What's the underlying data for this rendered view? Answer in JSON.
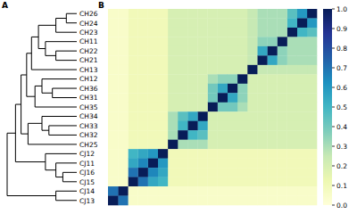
{
  "chart_data": {
    "type": "heatmap",
    "panel_labels": [
      "A",
      "B"
    ],
    "rows": [
      "CH26",
      "CH24",
      "CH23",
      "CH11",
      "CH22",
      "CH21",
      "CH13",
      "CH12",
      "CH36",
      "CH31",
      "CH35",
      "CH34",
      "CH33",
      "CH32",
      "CH25",
      "CJ12",
      "CJ11",
      "CJ16",
      "CJ15",
      "CJ14",
      "CJ13"
    ],
    "cells": [
      [
        1,
        0.6,
        0.45,
        0.3,
        0.3,
        0.3,
        0.25,
        0.2,
        0.2,
        0.2,
        0.2,
        0.2,
        0.2,
        0.2,
        0.2,
        0.1,
        0.1,
        0.1,
        0.1,
        0.05,
        0.05
      ],
      [
        0.6,
        1,
        0.5,
        0.3,
        0.3,
        0.3,
        0.25,
        0.2,
        0.2,
        0.2,
        0.2,
        0.2,
        0.2,
        0.2,
        0.2,
        0.1,
        0.1,
        0.1,
        0.1,
        0.05,
        0.05
      ],
      [
        0.45,
        0.5,
        1,
        0.3,
        0.3,
        0.3,
        0.25,
        0.2,
        0.2,
        0.2,
        0.2,
        0.2,
        0.2,
        0.2,
        0.2,
        0.1,
        0.1,
        0.1,
        0.1,
        0.05,
        0.05
      ],
      [
        0.3,
        0.3,
        0.3,
        1,
        0.35,
        0.35,
        0.25,
        0.2,
        0.2,
        0.2,
        0.2,
        0.2,
        0.2,
        0.2,
        0.2,
        0.1,
        0.1,
        0.1,
        0.1,
        0.05,
        0.05
      ],
      [
        0.3,
        0.3,
        0.3,
        0.35,
        1,
        0.55,
        0.25,
        0.2,
        0.2,
        0.2,
        0.2,
        0.2,
        0.2,
        0.2,
        0.2,
        0.1,
        0.1,
        0.1,
        0.1,
        0.05,
        0.05
      ],
      [
        0.3,
        0.3,
        0.3,
        0.35,
        0.55,
        1,
        0.25,
        0.2,
        0.2,
        0.2,
        0.2,
        0.2,
        0.2,
        0.2,
        0.2,
        0.1,
        0.1,
        0.1,
        0.1,
        0.05,
        0.05
      ],
      [
        0.25,
        0.25,
        0.25,
        0.25,
        0.25,
        0.25,
        1,
        0.2,
        0.2,
        0.2,
        0.2,
        0.2,
        0.2,
        0.2,
        0.2,
        0.1,
        0.1,
        0.1,
        0.1,
        0.05,
        0.05
      ],
      [
        0.2,
        0.2,
        0.2,
        0.2,
        0.2,
        0.2,
        0.2,
        1,
        0.35,
        0.35,
        0.3,
        0.2,
        0.2,
        0.2,
        0.2,
        0.1,
        0.1,
        0.1,
        0.1,
        0.05,
        0.05
      ],
      [
        0.2,
        0.2,
        0.2,
        0.2,
        0.2,
        0.2,
        0.2,
        0.35,
        1,
        0.55,
        0.4,
        0.2,
        0.2,
        0.2,
        0.2,
        0.1,
        0.1,
        0.1,
        0.1,
        0.05,
        0.05
      ],
      [
        0.2,
        0.2,
        0.2,
        0.2,
        0.2,
        0.2,
        0.2,
        0.35,
        0.55,
        1,
        0.4,
        0.2,
        0.2,
        0.2,
        0.2,
        0.1,
        0.1,
        0.1,
        0.1,
        0.05,
        0.05
      ],
      [
        0.2,
        0.2,
        0.2,
        0.2,
        0.2,
        0.2,
        0.2,
        0.3,
        0.4,
        0.4,
        1,
        0.2,
        0.2,
        0.2,
        0.2,
        0.1,
        0.1,
        0.1,
        0.1,
        0.05,
        0.05
      ],
      [
        0.2,
        0.2,
        0.2,
        0.2,
        0.2,
        0.2,
        0.2,
        0.2,
        0.2,
        0.2,
        0.2,
        1,
        0.55,
        0.45,
        0.3,
        0.1,
        0.1,
        0.1,
        0.1,
        0.05,
        0.05
      ],
      [
        0.2,
        0.2,
        0.2,
        0.2,
        0.2,
        0.2,
        0.2,
        0.2,
        0.2,
        0.2,
        0.2,
        0.55,
        1,
        0.5,
        0.3,
        0.1,
        0.1,
        0.1,
        0.1,
        0.05,
        0.05
      ],
      [
        0.2,
        0.2,
        0.2,
        0.2,
        0.2,
        0.2,
        0.2,
        0.2,
        0.2,
        0.2,
        0.2,
        0.45,
        0.5,
        1,
        0.3,
        0.1,
        0.1,
        0.1,
        0.1,
        0.05,
        0.05
      ],
      [
        0.2,
        0.2,
        0.2,
        0.2,
        0.2,
        0.2,
        0.2,
        0.2,
        0.2,
        0.2,
        0.2,
        0.3,
        0.3,
        0.3,
        1,
        0.1,
        0.1,
        0.1,
        0.1,
        0.05,
        0.05
      ],
      [
        0.1,
        0.1,
        0.1,
        0.1,
        0.1,
        0.1,
        0.1,
        0.1,
        0.1,
        0.1,
        0.1,
        0.1,
        0.1,
        0.1,
        0.1,
        1,
        0.6,
        0.55,
        0.5,
        0.05,
        0.05
      ],
      [
        0.1,
        0.1,
        0.1,
        0.1,
        0.1,
        0.1,
        0.1,
        0.1,
        0.1,
        0.1,
        0.1,
        0.1,
        0.1,
        0.1,
        0.1,
        0.6,
        1,
        0.65,
        0.55,
        0.05,
        0.05
      ],
      [
        0.1,
        0.1,
        0.1,
        0.1,
        0.1,
        0.1,
        0.1,
        0.1,
        0.1,
        0.1,
        0.1,
        0.1,
        0.1,
        0.1,
        0.1,
        0.55,
        0.65,
        1,
        0.7,
        0.05,
        0.05
      ],
      [
        0.1,
        0.1,
        0.1,
        0.1,
        0.1,
        0.1,
        0.1,
        0.1,
        0.1,
        0.1,
        0.1,
        0.1,
        0.1,
        0.1,
        0.1,
        0.5,
        0.55,
        0.7,
        1,
        0.05,
        0.05
      ],
      [
        0.05,
        0.05,
        0.05,
        0.05,
        0.05,
        0.05,
        0.05,
        0.05,
        0.05,
        0.05,
        0.05,
        0.05,
        0.05,
        0.05,
        0.05,
        0.05,
        0.05,
        0.05,
        0.05,
        1,
        0.7
      ],
      [
        0.05,
        0.05,
        0.05,
        0.05,
        0.05,
        0.05,
        0.05,
        0.05,
        0.05,
        0.05,
        0.05,
        0.05,
        0.05,
        0.05,
        0.05,
        0.05,
        0.05,
        0.05,
        0.05,
        0.7,
        1
      ]
    ],
    "colorbar": {
      "range": [
        0,
        1
      ],
      "ticks": [
        {
          "value": 0,
          "label": "0.0"
        },
        {
          "value": 0.1,
          "label": "0.1"
        },
        {
          "value": 0.2,
          "label": "0.2"
        },
        {
          "value": 0.3,
          "label": "0.3"
        },
        {
          "value": 0.4,
          "label": "0.4"
        },
        {
          "value": 0.5,
          "label": "0.5"
        },
        {
          "value": 0.6,
          "label": "0.6"
        },
        {
          "value": 0.7,
          "label": "0.7"
        },
        {
          "value": 0.8,
          "label": "0.8"
        },
        {
          "value": 0.9,
          "label": "0.9"
        },
        {
          "value": 1,
          "label": "1.0"
        }
      ]
    },
    "dendrogram": [
      {
        "left": 0,
        "right": 1,
        "height": 0.15
      },
      {
        "left": 21,
        "right": 2,
        "height": 0.3
      },
      {
        "left": 4,
        "right": 5,
        "height": 0.3
      },
      {
        "left": 3,
        "right": 23,
        "height": 0.45
      },
      {
        "left": 22,
        "right": 24,
        "height": 0.55
      },
      {
        "left": 25,
        "right": 6,
        "height": 0.65
      },
      {
        "left": 8,
        "right": 9,
        "height": 0.35
      },
      {
        "left": 7,
        "right": 27,
        "height": 0.5
      },
      {
        "left": 28,
        "right": 10,
        "height": 0.6
      },
      {
        "left": 26,
        "right": 29,
        "height": 0.72
      },
      {
        "left": 12,
        "right": 13,
        "height": 0.4
      },
      {
        "left": 11,
        "right": 31,
        "height": 0.5
      },
      {
        "left": 32,
        "right": 14,
        "height": 0.7
      },
      {
        "left": 30,
        "right": 33,
        "height": 0.8
      },
      {
        "left": 17,
        "right": 18,
        "height": 0.2
      },
      {
        "left": 16,
        "right": 35,
        "height": 0.3
      },
      {
        "left": 15,
        "right": 36,
        "height": 0.45
      },
      {
        "left": 34,
        "right": 37,
        "height": 0.88
      },
      {
        "left": 19,
        "right": 20,
        "height": 0.3
      },
      {
        "left": 38,
        "right": 39,
        "height": 1
      }
    ]
  }
}
